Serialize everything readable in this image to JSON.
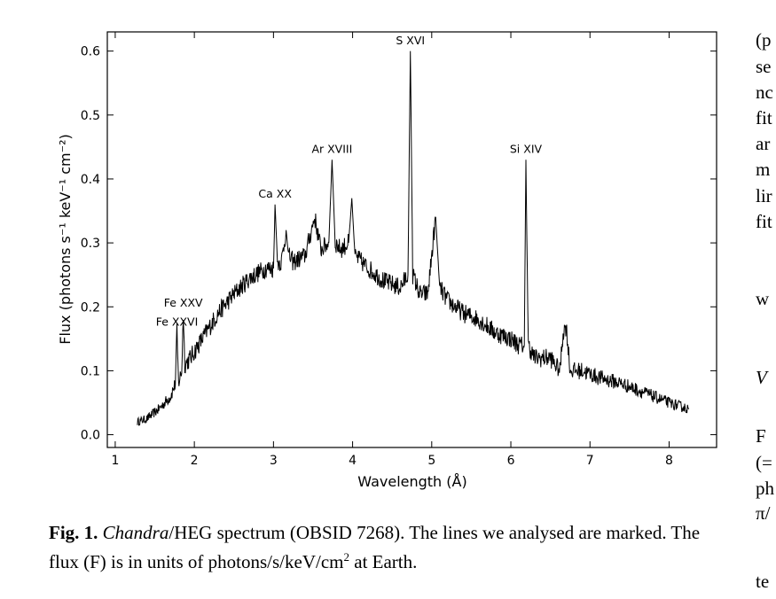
{
  "chart_data": {
    "type": "line",
    "xlabel": "Wavelength (Å)",
    "ylabel": "Flux (photons s⁻¹ keV⁻¹ cm⁻²)",
    "xlim": [
      0.9,
      8.6
    ],
    "ylim": [
      -0.02,
      0.63
    ],
    "xticks": [
      1,
      2,
      3,
      4,
      5,
      6,
      7,
      8
    ],
    "yticks": [
      0.0,
      0.1,
      0.2,
      0.3,
      0.4,
      0.5,
      0.6
    ],
    "grid": false,
    "series": [
      {
        "color": "#000000",
        "x": [
          1.28,
          1.4,
          1.55,
          1.7,
          1.76,
          1.78,
          1.8,
          1.84,
          1.86,
          1.88,
          1.95,
          2.1,
          2.3,
          2.5,
          2.7,
          2.9,
          3.0,
          3.02,
          3.05,
          3.1,
          3.16,
          3.19,
          3.25,
          3.4,
          3.52,
          3.6,
          3.7,
          3.74,
          3.78,
          3.85,
          3.95,
          3.99,
          4.03,
          4.2,
          4.4,
          4.6,
          4.7,
          4.73,
          4.76,
          4.85,
          4.95,
          5.05,
          5.1,
          5.2,
          5.4,
          5.6,
          5.8,
          6.0,
          6.1,
          6.17,
          6.19,
          6.22,
          6.3,
          6.5,
          6.62,
          6.66,
          6.7,
          6.75,
          6.9,
          7.1,
          7.4,
          7.7,
          8.0,
          8.25
        ],
        "y": [
          0.02,
          0.025,
          0.04,
          0.06,
          0.08,
          0.16,
          0.08,
          0.1,
          0.19,
          0.11,
          0.12,
          0.15,
          0.19,
          0.22,
          0.245,
          0.26,
          0.26,
          0.36,
          0.27,
          0.27,
          0.32,
          0.28,
          0.27,
          0.28,
          0.34,
          0.29,
          0.3,
          0.43,
          0.3,
          0.29,
          0.3,
          0.37,
          0.28,
          0.26,
          0.24,
          0.23,
          0.25,
          0.6,
          0.25,
          0.22,
          0.22,
          0.34,
          0.23,
          0.21,
          0.19,
          0.18,
          0.16,
          0.15,
          0.14,
          0.14,
          0.43,
          0.14,
          0.12,
          0.12,
          0.1,
          0.16,
          0.17,
          0.1,
          0.1,
          0.09,
          0.08,
          0.065,
          0.05,
          0.04
        ]
      }
    ],
    "annotations": [
      {
        "text": "Fe XXVI",
        "x": 1.78,
        "y": 0.165
      },
      {
        "text": "Fe XXV",
        "x": 1.86,
        "y": 0.195
      },
      {
        "text": "Ca XX",
        "x": 3.02,
        "y": 0.365
      },
      {
        "text": "Ar XVIII",
        "x": 3.74,
        "y": 0.435
      },
      {
        "text": "S XVI",
        "x": 4.73,
        "y": 0.605
      },
      {
        "text": "Si XIV",
        "x": 6.19,
        "y": 0.435
      }
    ]
  },
  "caption": {
    "label": "Fig. 1.",
    "italic": "Chandra",
    "text": "/HEG spectrum (OBSID 7268). The lines we analysed are marked. The flux (F) is in units of photons/s/keV/cm",
    "superscript": "2",
    "tail": " at Earth."
  },
  "side_text": [
    "(p",
    "se",
    "nc",
    "fit",
    "ar",
    "m",
    "lir",
    "fit",
    "w",
    "V",
    "F",
    "(=",
    "ph",
    "π/",
    "te"
  ]
}
